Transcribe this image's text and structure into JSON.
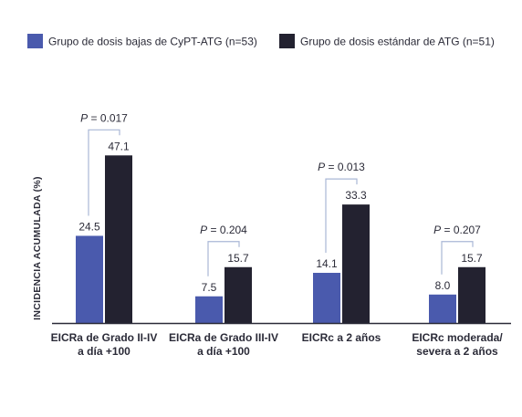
{
  "chart_data": {
    "type": "bar",
    "ylabel": "INCIDENCIA ACUMULADA (%)",
    "xlabel": "",
    "title": "",
    "ylim": [
      0,
      50
    ],
    "legend_position": "top",
    "categories": [
      [
        "EICRa de Grado II-IV",
        "a día +100"
      ],
      [
        "EICRa de Grado III-IV",
        "a día +100"
      ],
      [
        "EICRc a 2 años"
      ],
      [
        "EICRc moderada/",
        "severa a 2 años"
      ]
    ],
    "series": [
      {
        "name": "Grupo de dosis bajas de CyPT-ATG (n=53)",
        "color": "#4a5aad",
        "values": [
          24.5,
          7.5,
          14.1,
          8.0
        ],
        "labels": [
          "24.5",
          "7.5",
          "14.1",
          "8.0"
        ]
      },
      {
        "name": "Grupo de dosis estándar de ATG (n=51)",
        "color": "#232230",
        "values": [
          47.1,
          15.7,
          33.3,
          15.7
        ],
        "labels": [
          "47.1",
          "15.7",
          "33.3",
          "15.7"
        ]
      }
    ],
    "p_prefix": "P",
    "p_values": [
      "= 0.017",
      "= 0.204",
      "= 0.013",
      "= 0.207"
    ],
    "bracket_color": "#a9b7d6",
    "axis_color": "#2b2b38",
    "text_color": "#2b2b38"
  }
}
